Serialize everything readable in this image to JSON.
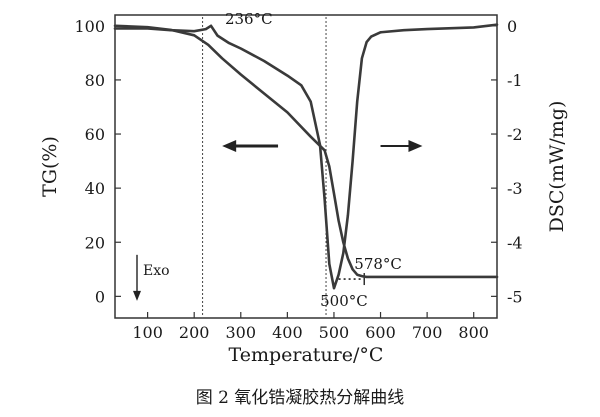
{
  "chart_data": {
    "type": "line",
    "xlabel": "Temperature/°C",
    "ylabel_left": "TG(%)",
    "ylabel_right": "DSC(mW/mg)",
    "xlim": [
      30,
      850
    ],
    "ylim_left": [
      -8,
      104
    ],
    "ylim_right": [
      -5.4,
      0.2
    ],
    "x_ticks": [
      100,
      200,
      300,
      400,
      500,
      600,
      700,
      800
    ],
    "y_left_ticks": [
      0,
      20,
      40,
      60,
      80,
      100
    ],
    "y_right_ticks": [
      0,
      -1,
      -2,
      -3,
      -4,
      -5
    ],
    "grid": false,
    "legend": "none",
    "series": [
      {
        "axis": "left",
        "x": [
          30,
          100,
          150,
          200,
          230,
          260,
          300,
          350,
          400,
          450,
          480,
          490,
          500,
          510,
          520,
          530,
          540,
          550,
          560,
          565,
          570,
          600,
          700,
          800,
          850
        ],
        "y": [
          100,
          99.5,
          98.5,
          96.5,
          93,
          88,
          82,
          75,
          68,
          59,
          54,
          48,
          38,
          28,
          20,
          14,
          10,
          8,
          7.5,
          7.3,
          7.2,
          7.2,
          7.2,
          7.2,
          7.2
        ]
      },
      {
        "axis": "right",
        "x": [
          30,
          100,
          150,
          200,
          225,
          236,
          250,
          275,
          300,
          350,
          400,
          430,
          450,
          470,
          480,
          490,
          500,
          510,
          520,
          530,
          540,
          550,
          560,
          570,
          580,
          600,
          650,
          700,
          800,
          850
        ],
        "y": [
          -0.05,
          -0.05,
          -0.08,
          -0.1,
          -0.06,
          0.0,
          -0.18,
          -0.32,
          -0.42,
          -0.65,
          -0.92,
          -1.1,
          -1.4,
          -2.2,
          -3.2,
          -4.4,
          -4.85,
          -4.6,
          -4.2,
          -3.5,
          -2.5,
          -1.4,
          -0.6,
          -0.3,
          -0.2,
          -0.12,
          -0.08,
          -0.06,
          -0.03,
          0.02
        ]
      }
    ],
    "annotations": [
      {
        "text": "236°C",
        "x": 236,
        "axis": "right",
        "y": 0.0
      },
      {
        "text": "500°C",
        "x": 500,
        "axis": "right",
        "y": -4.85
      },
      {
        "text": "578°C",
        "x": 578,
        "axis": "right",
        "y": -4.68
      },
      {
        "text": "Exo",
        "x": 65,
        "axis": "left",
        "y": 5
      }
    ],
    "reference_lines": [
      {
        "type": "vertical",
        "x": 218
      },
      {
        "type": "vertical",
        "x": 483
      },
      {
        "type": "horizontal-dotted",
        "x_from": 510,
        "x_to": 565,
        "axis": "right",
        "y": -4.68
      }
    ],
    "direction_arrows": [
      {
        "from_x": 380,
        "to_x": 260,
        "axis": "right",
        "y": -2.22
      },
      {
        "from_x": 600,
        "to_x": 690,
        "axis": "right",
        "y": -2.22
      }
    ]
  },
  "caption": "图 2 氧化锆凝胶热分解曲线"
}
